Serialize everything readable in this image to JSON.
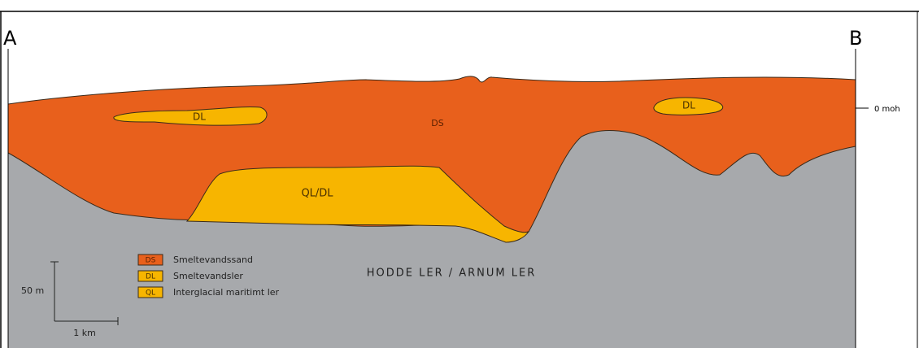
{
  "labels": {
    "a": "A",
    "b": "B",
    "datum": "0 moh"
  },
  "units": {
    "ds": "DS",
    "dl_left": "DL",
    "dl_right": "DL",
    "qldl": "QL/DL",
    "base": "HODDE LER / ARNUM LER"
  },
  "legend": [
    {
      "code": "DS",
      "label": "Smeltevandssand"
    },
    {
      "code": "DL",
      "label": "Smeltevandsler"
    },
    {
      "code": "QL",
      "label": "Interglacial maritimt ler"
    }
  ],
  "scale": {
    "vertical": "50 m",
    "horizontal": "1 km"
  }
}
